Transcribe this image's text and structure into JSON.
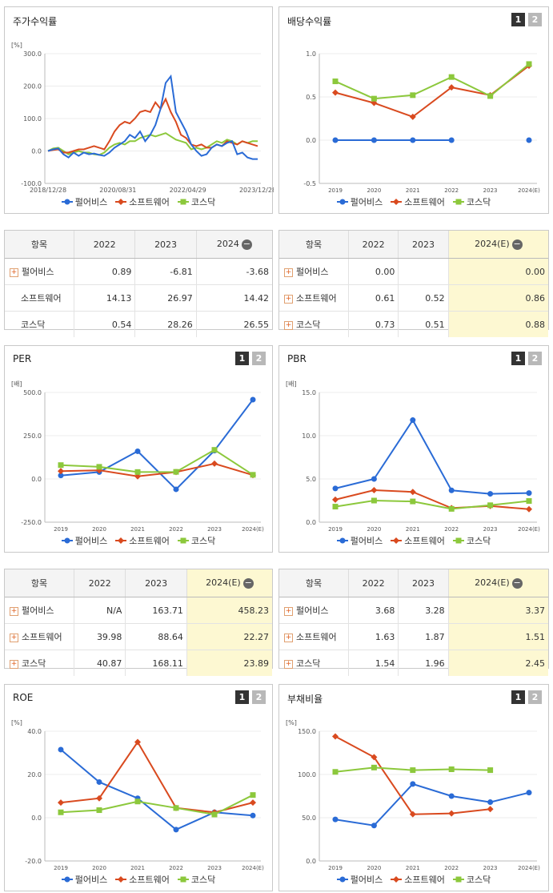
{
  "colors": {
    "s1": "#2a6bd6",
    "s2": "#d94a1f",
    "s3": "#8cc83c"
  },
  "legend_labels": [
    "펄어비스",
    "소프트웨어",
    "코스닥"
  ],
  "panels": {
    "stock": {
      "title": "주가수익률"
    },
    "div": {
      "title": "배당수익률",
      "tab1": "1",
      "tab2": "2"
    },
    "per": {
      "title": "PER",
      "tab1": "1",
      "tab2": "2"
    },
    "pbr": {
      "title": "PBR",
      "tab1": "1",
      "tab2": "2"
    },
    "roe": {
      "title": "ROE",
      "tab1": "1",
      "tab2": "2"
    },
    "debt": {
      "title": "부채비율",
      "tab1": "1",
      "tab2": "2"
    }
  },
  "tables": {
    "stock": {
      "headers": [
        "항목",
        "2022",
        "2023",
        "2024"
      ],
      "rows": [
        {
          "name": "펄어비스",
          "vals": [
            "0.89",
            "-6.81",
            "-3.68"
          ],
          "plus": true
        },
        {
          "name": "소프트웨어",
          "vals": [
            "14.13",
            "26.97",
            "14.42"
          ],
          "plus": false
        },
        {
          "name": "코스닥",
          "vals": [
            "0.54",
            "28.26",
            "26.55"
          ],
          "plus": false
        }
      ]
    },
    "div": {
      "headers": [
        "항목",
        "2022",
        "2023",
        "2024(E)"
      ],
      "rows": [
        {
          "name": "펄어비스",
          "vals": [
            "0.00",
            "",
            "0.00"
          ],
          "plus": true
        },
        {
          "name": "소프트웨어",
          "vals": [
            "0.61",
            "0.52",
            "0.86"
          ],
          "plus": true
        },
        {
          "name": "코스닥",
          "vals": [
            "0.73",
            "0.51",
            "0.88"
          ],
          "plus": true
        }
      ]
    },
    "per": {
      "headers": [
        "항목",
        "2022",
        "2023",
        "2024(E)"
      ],
      "rows": [
        {
          "name": "펄어비스",
          "vals": [
            "N/A",
            "163.71",
            "458.23"
          ],
          "plus": true
        },
        {
          "name": "소프트웨어",
          "vals": [
            "39.98",
            "88.64",
            "22.27"
          ],
          "plus": true
        },
        {
          "name": "코스닥",
          "vals": [
            "40.87",
            "168.11",
            "23.89"
          ],
          "plus": true
        }
      ]
    },
    "pbr": {
      "headers": [
        "항목",
        "2022",
        "2023",
        "2024(E)"
      ],
      "rows": [
        {
          "name": "펄어비스",
          "vals": [
            "3.68",
            "3.28",
            "3.37"
          ],
          "plus": true
        },
        {
          "name": "소프트웨어",
          "vals": [
            "1.63",
            "1.87",
            "1.51"
          ],
          "plus": true
        },
        {
          "name": "코스닥",
          "vals": [
            "1.54",
            "1.96",
            "2.45"
          ],
          "plus": true
        }
      ]
    }
  },
  "chart_data": [
    {
      "id": "stock",
      "type": "line",
      "title": "주가수익률",
      "unit": "[%]",
      "ylim": [
        -100,
        300
      ],
      "yticks": [
        "300.0",
        "200.0",
        "100.0",
        "0.0",
        "-100.0"
      ],
      "ytick_values": [
        300,
        200,
        100,
        0,
        -100
      ],
      "xticks": [
        "2018/12/28",
        "2020/08/31",
        "2022/04/29",
        "2023/12/28"
      ],
      "series": [
        {
          "name": "펄어비스",
          "values": [
            0,
            5,
            8,
            -10,
            -20,
            -5,
            -15,
            -5,
            -10,
            -8,
            -12,
            -15,
            -5,
            10,
            20,
            30,
            50,
            40,
            60,
            30,
            50,
            80,
            130,
            210,
            230,
            120,
            90,
            60,
            20,
            0,
            -15,
            -10,
            10,
            20,
            15,
            25,
            30,
            -10,
            -5,
            -20,
            -25,
            -25
          ]
        },
        {
          "name": "소프트웨어",
          "values": [
            0,
            3,
            5,
            -5,
            -5,
            0,
            5,
            5,
            10,
            15,
            10,
            5,
            30,
            60,
            80,
            90,
            85,
            100,
            120,
            125,
            120,
            150,
            130,
            160,
            120,
            90,
            50,
            40,
            20,
            15,
            20,
            10,
            10,
            20,
            15,
            30,
            25,
            20,
            30,
            25,
            20,
            15
          ]
        },
        {
          "name": "코스닥",
          "values": [
            0,
            8,
            10,
            0,
            -10,
            -5,
            0,
            -5,
            -5,
            -10,
            -12,
            -5,
            10,
            20,
            25,
            20,
            30,
            30,
            40,
            45,
            50,
            45,
            50,
            55,
            45,
            35,
            30,
            25,
            5,
            10,
            5,
            10,
            20,
            30,
            25,
            35,
            30,
            20,
            30,
            25,
            30,
            30
          ]
        }
      ]
    },
    {
      "id": "div",
      "type": "line",
      "title": "배당수익률",
      "unit": "",
      "ylim": [
        -0.5,
        1.0
      ],
      "yticks": [
        "1.0",
        "0.5",
        "0.0",
        "-0.5"
      ],
      "ytick_values": [
        1.0,
        0.5,
        0.0,
        -0.5
      ],
      "categories": [
        "2019",
        "2020",
        "2021",
        "2022",
        "2023",
        "2024(E)"
      ],
      "series": [
        {
          "name": "펄어비스",
          "values": [
            0.0,
            0.0,
            0.0,
            0.0,
            null,
            0.0
          ]
        },
        {
          "name": "소프트웨어",
          "values": [
            0.55,
            0.43,
            0.27,
            0.61,
            0.52,
            0.86
          ]
        },
        {
          "name": "코스닥",
          "values": [
            0.68,
            0.48,
            0.52,
            0.73,
            0.51,
            0.88
          ]
        }
      ]
    },
    {
      "id": "per",
      "type": "line",
      "title": "PER",
      "unit": "[배]",
      "ylim": [
        -250,
        500
      ],
      "yticks": [
        "500.0",
        "250.0",
        "0.0",
        "-250.0"
      ],
      "ytick_values": [
        500,
        250,
        0,
        -250
      ],
      "categories": [
        "2019",
        "2020",
        "2021",
        "2022",
        "2023",
        "2024(E)"
      ],
      "series": [
        {
          "name": "펄어비스",
          "values": [
            20,
            40,
            160,
            -60,
            163.71,
            458.23
          ]
        },
        {
          "name": "소프트웨어",
          "values": [
            45,
            50,
            15,
            39.98,
            88.64,
            22.27
          ]
        },
        {
          "name": "코스닥",
          "values": [
            80,
            70,
            40,
            40.87,
            168.11,
            23.89
          ]
        }
      ]
    },
    {
      "id": "pbr",
      "type": "line",
      "title": "PBR",
      "unit": "[배]",
      "ylim": [
        0,
        15
      ],
      "yticks": [
        "15.0",
        "10.0",
        "5.0",
        "0.0"
      ],
      "ytick_values": [
        15,
        10,
        5,
        0
      ],
      "categories": [
        "2019",
        "2020",
        "2021",
        "2022",
        "2023",
        "2024(E)"
      ],
      "series": [
        {
          "name": "펄어비스",
          "values": [
            3.9,
            5.0,
            11.8,
            3.68,
            3.28,
            3.37
          ]
        },
        {
          "name": "소프트웨어",
          "values": [
            2.6,
            3.7,
            3.5,
            1.63,
            1.87,
            1.51
          ]
        },
        {
          "name": "코스닥",
          "values": [
            1.8,
            2.5,
            2.4,
            1.54,
            1.96,
            2.45
          ]
        }
      ]
    },
    {
      "id": "roe",
      "type": "line",
      "title": "ROE",
      "unit": "[%]",
      "ylim": [
        -20,
        40
      ],
      "yticks": [
        "40.0",
        "20.0",
        "0.0",
        "-20.0"
      ],
      "ytick_values": [
        40,
        20,
        0,
        -20
      ],
      "categories": [
        "2019",
        "2020",
        "2021",
        "2022",
        "2023",
        "2024(E)"
      ],
      "series": [
        {
          "name": "펄어비스",
          "values": [
            31.5,
            16.5,
            9.0,
            -5.5,
            2.5,
            1.0
          ]
        },
        {
          "name": "소프트웨어",
          "values": [
            7.0,
            9.0,
            35.0,
            4.5,
            2.5,
            7.0
          ]
        },
        {
          "name": "코스닥",
          "values": [
            2.5,
            3.5,
            7.5,
            4.5,
            1.5,
            10.5
          ]
        }
      ]
    },
    {
      "id": "debt",
      "type": "line",
      "title": "부채비율",
      "unit": "[%]",
      "ylim": [
        0,
        150
      ],
      "yticks": [
        "150.0",
        "100.0",
        "50.0",
        "0.0"
      ],
      "ytick_values": [
        150,
        100,
        50,
        0
      ],
      "categories": [
        "2019",
        "2020",
        "2021",
        "2022",
        "2023",
        "2024(E)"
      ],
      "series": [
        {
          "name": "펄어비스",
          "values": [
            48,
            41,
            89,
            75,
            68,
            79
          ]
        },
        {
          "name": "소프트웨어",
          "values": [
            144,
            120,
            54,
            55,
            60,
            null
          ]
        },
        {
          "name": "코스닥",
          "values": [
            103,
            108,
            105,
            106,
            105,
            null
          ]
        }
      ]
    }
  ]
}
